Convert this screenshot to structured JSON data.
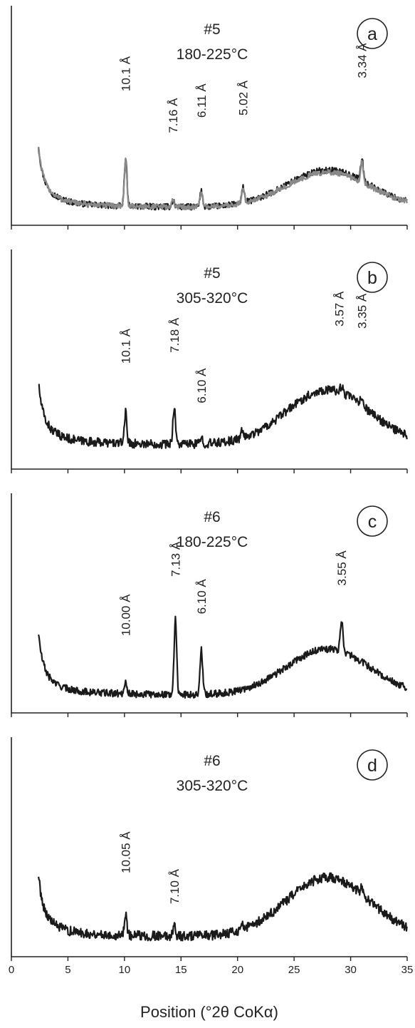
{
  "chart_data": {
    "type": "line",
    "xlabel": "Position (°2θ CoKα)",
    "xlim": [
      0,
      35
    ],
    "xticks": [
      0,
      5,
      10,
      15,
      20,
      25,
      30,
      35
    ],
    "xtick_labels": [
      "0",
      "5",
      "10",
      "15",
      "20",
      "25",
      "30",
      "35"
    ],
    "colors": {
      "dark": "#1a1a1a",
      "gray": "#8a8a8a"
    },
    "panels": [
      {
        "letter": "a",
        "sample": "#5",
        "temperature": "180-225°C",
        "series": [
          {
            "color": "dark",
            "bg_base": 0.08,
            "bg_hump": 0.17,
            "noise": 0.014,
            "peaks": [
              [
                10.1,
                0.22
              ],
              [
                14.3,
                0.03
              ],
              [
                16.8,
                0.07
              ],
              [
                20.5,
                0.07
              ],
              [
                31.0,
                0.1
              ]
            ]
          },
          {
            "color": "gray",
            "bg_base": 0.08,
            "bg_hump": 0.16,
            "noise": 0.012,
            "peaks": [
              [
                10.1,
                0.21
              ],
              [
                14.3,
                0.03
              ],
              [
                16.8,
                0.07
              ],
              [
                20.5,
                0.07
              ],
              [
                31.0,
                0.09
              ]
            ]
          }
        ],
        "peak_labels": [
          {
            "text": "10.1 Å",
            "x": 10.1,
            "y": 0.61
          },
          {
            "text": "7.16 Å",
            "x": 14.3,
            "y": 0.42
          },
          {
            "text": "6.11 Å",
            "x": 16.8,
            "y": 0.49
          },
          {
            "text": "5.02 Å",
            "x": 20.5,
            "y": 0.5
          },
          {
            "text": "3.34 Å",
            "x": 31.0,
            "y": 0.67
          }
        ]
      },
      {
        "letter": "b",
        "sample": "#5",
        "temperature": "305-320°C",
        "series": [
          {
            "color": "dark",
            "bg_base": 0.11,
            "bg_hump": 0.25,
            "noise": 0.02,
            "peaks": [
              [
                10.1,
                0.14
              ],
              [
                14.4,
                0.17
              ],
              [
                16.8,
                0.03
              ],
              [
                20.4,
                0.03
              ],
              [
                29.2,
                0.03
              ],
              [
                31.0,
                0.04
              ]
            ]
          }
        ],
        "peak_labels": [
          {
            "text": "10.1 Å",
            "x": 10.1,
            "y": 0.48
          },
          {
            "text": "7.18 Å",
            "x": 14.4,
            "y": 0.53
          },
          {
            "text": "6.10 Å",
            "x": 16.8,
            "y": 0.3
          },
          {
            "text": "3.57 Å",
            "x": 29.0,
            "y": 0.65
          },
          {
            "text": "3.35 Å",
            "x": 31.0,
            "y": 0.64
          }
        ]
      },
      {
        "letter": "c",
        "sample": "#6",
        "temperature": "180-225°C",
        "series": [
          {
            "color": "dark",
            "bg_base": 0.08,
            "bg_hump": 0.21,
            "noise": 0.016,
            "peaks": [
              [
                10.1,
                0.06
              ],
              [
                14.5,
                0.34
              ],
              [
                16.8,
                0.2
              ],
              [
                29.2,
                0.14
              ]
            ]
          }
        ],
        "peak_labels": [
          {
            "text": "10.00 Å",
            "x": 10.1,
            "y": 0.35
          },
          {
            "text": "7.13 Å",
            "x": 14.5,
            "y": 0.62
          },
          {
            "text": "6.10 Å",
            "x": 16.8,
            "y": 0.45
          },
          {
            "text": "3.55 Å",
            "x": 29.2,
            "y": 0.58
          }
        ]
      },
      {
        "letter": "d",
        "sample": "#6",
        "temperature": "305-320°C",
        "series": [
          {
            "color": "dark",
            "bg_base": 0.09,
            "bg_hump": 0.27,
            "noise": 0.022,
            "peaks": [
              [
                10.1,
                0.1
              ],
              [
                14.4,
                0.05
              ],
              [
                20.4,
                0.03
              ],
              [
                31.0,
                0.03
              ]
            ]
          }
        ],
        "peak_labels": [
          {
            "text": "10.05 Å",
            "x": 10.1,
            "y": 0.38
          },
          {
            "text": "7.10 Å",
            "x": 14.4,
            "y": 0.24
          }
        ]
      }
    ]
  }
}
